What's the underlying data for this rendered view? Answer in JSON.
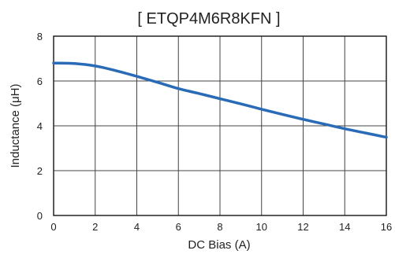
{
  "chart_data": {
    "type": "line",
    "title": "[ ETQP4M6R8KFN ]",
    "xlabel": "DC Bias (A)",
    "ylabel": "Inductance (μH)",
    "xlim": [
      0,
      16
    ],
    "ylim": [
      0,
      8
    ],
    "x_ticks": [
      "0",
      "2",
      "4",
      "6",
      "8",
      "10",
      "12",
      "14",
      "16"
    ],
    "y_ticks": [
      "0",
      "2",
      "4",
      "6",
      "8"
    ],
    "grid": true,
    "series": [
      {
        "color": "#2a6bb8",
        "x": [
          0,
          1,
          2,
          3,
          4,
          5,
          6,
          7,
          8,
          9,
          10,
          11,
          12,
          13,
          14,
          15,
          16
        ],
        "y": [
          6.8,
          6.78,
          6.67,
          6.46,
          6.21,
          5.94,
          5.66,
          5.44,
          5.21,
          4.98,
          4.74,
          4.51,
          4.29,
          4.08,
          3.87,
          3.68,
          3.49
        ]
      }
    ]
  }
}
